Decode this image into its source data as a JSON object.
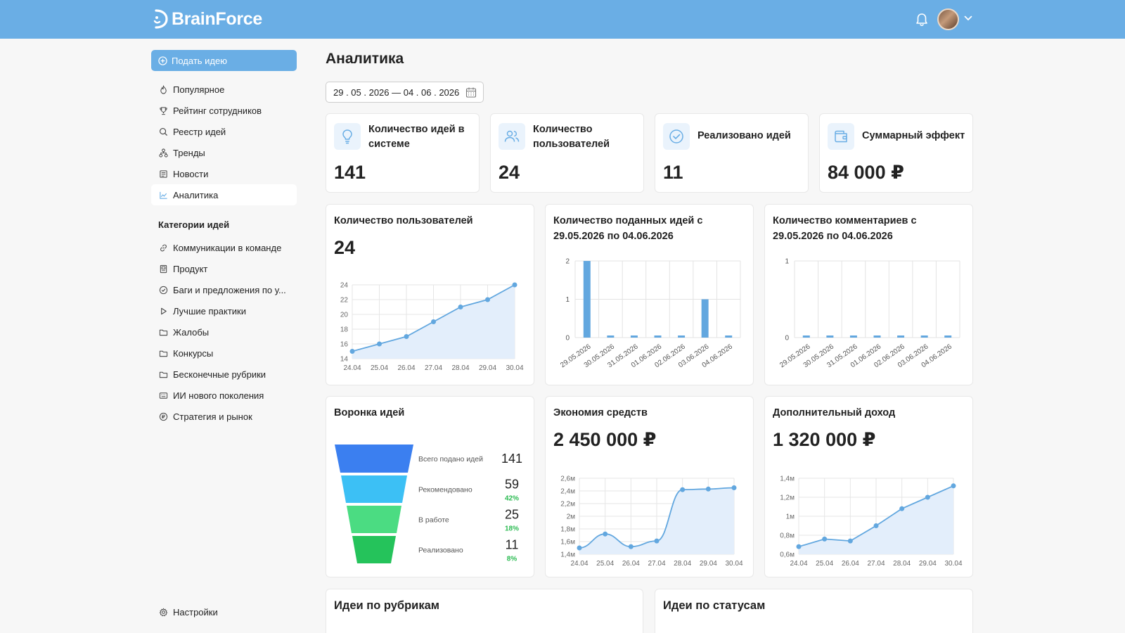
{
  "brand": {
    "name": "BrainForce"
  },
  "sidebar": {
    "submit_label": "Подать идею",
    "nav": [
      {
        "label": "Популярное",
        "icon": "flame-icon"
      },
      {
        "label": "Рейтинг сотрудников",
        "icon": "trophy-icon"
      },
      {
        "label": "Реестр идей",
        "icon": "search-icon"
      },
      {
        "label": "Тренды",
        "icon": "hierarchy-icon"
      },
      {
        "label": "Новости",
        "icon": "newspaper-icon"
      },
      {
        "label": "Аналитика",
        "icon": "chart-icon",
        "active": true
      }
    ],
    "categories_title": "Категории идей",
    "categories": [
      {
        "label": "Коммуникации в команде",
        "icon": "link-icon"
      },
      {
        "label": "Продукт",
        "icon": "product-icon"
      },
      {
        "label": "Баги и предложения по у...",
        "icon": "check-circle-icon"
      },
      {
        "label": "Лучшие практики",
        "icon": "play-icon"
      },
      {
        "label": "Жалобы",
        "icon": "folder-icon"
      },
      {
        "label": "Конкурсы",
        "icon": "folder-icon"
      },
      {
        "label": "Бесконечные рубрики",
        "icon": "folder-icon"
      },
      {
        "label": "ИИ нового поколения",
        "icon": "keyboard-icon"
      },
      {
        "label": "Стратегия и рынок",
        "icon": "coin-icon"
      }
    ],
    "settings_label": "Настройки"
  },
  "main": {
    "title": "Аналитика",
    "date_range": "29 . 05 . 2026 — 04 . 06 . 2026",
    "kpis": [
      {
        "title": "Количество идей в системе",
        "value": "141",
        "icon": "lightbulb-icon"
      },
      {
        "title": "Количество пользователей",
        "value": "24",
        "icon": "users-icon"
      },
      {
        "title": "Реализовано идей",
        "value": "11",
        "icon": "check-circle-icon"
      },
      {
        "title": "Суммарный эффект",
        "value": "84 000 ₽",
        "icon": "wallet-icon"
      }
    ],
    "users_card": {
      "title": "Количество пользователей",
      "value": "24"
    },
    "ideas_card": {
      "title": "Количество поданных идей с 29.05.2026 по 04.06.2026"
    },
    "comments_card": {
      "title": "Количество комментариев с 29.05.2026 по 04.06.2026"
    },
    "funnel_card": {
      "title": "Воронка идей"
    },
    "savings_card": {
      "title": "Экономия средств",
      "value": "2 450 000 ₽"
    },
    "income_card": {
      "title": "Дополнительный доход",
      "value": "1 320 000 ₽"
    },
    "bottom": {
      "by_category": "Идеи по рубрикам",
      "by_status": "Идеи по статусам"
    }
  },
  "colors": {
    "accent": "#6aaee5",
    "line": "#62a7df",
    "area": "#e3eefb",
    "green": "#2bbb52",
    "funnel": [
      "#3b7ff0",
      "#3cc0f5",
      "#4bdc82",
      "#25c35b"
    ]
  },
  "chart_data": [
    {
      "id": "users",
      "type": "area",
      "x": [
        "24.04",
        "25.04",
        "26.04",
        "27.04",
        "28.04",
        "29.04",
        "30.04"
      ],
      "series": [
        {
          "values": [
            15,
            16,
            17,
            19,
            21,
            22,
            24
          ]
        }
      ],
      "ylim": [
        14,
        24
      ],
      "yticks": [
        "14",
        "16",
        "18",
        "20",
        "22",
        "24"
      ],
      "grid": true
    },
    {
      "id": "ideas",
      "type": "bar",
      "categories": [
        "29.05.2026",
        "30.05.2026",
        "31.05.2026",
        "01.06.2026",
        "02.06.2026",
        "03.06.2026",
        "04.06.2026"
      ],
      "values": [
        2,
        0,
        0,
        0,
        0,
        1,
        0
      ],
      "ylim": [
        0,
        2
      ],
      "yticks": [
        "0",
        "1",
        "2"
      ],
      "grid": true
    },
    {
      "id": "comments",
      "type": "bar",
      "categories": [
        "29.05.2026",
        "30.05.2026",
        "31.05.2026",
        "01.06.2026",
        "02.06.2026",
        "03.06.2026",
        "04.06.2026"
      ],
      "values": [
        0,
        0,
        0,
        0,
        0,
        0,
        0
      ],
      "ylim": [
        0,
        1
      ],
      "yticks": [
        "0",
        "1"
      ],
      "grid": true
    },
    {
      "id": "funnel",
      "type": "funnel",
      "stages": [
        {
          "label": "Всего подано идей",
          "value": 141,
          "pct": ""
        },
        {
          "label": "Рекомендовано",
          "value": 59,
          "pct": "42%"
        },
        {
          "label": "В работе",
          "value": 25,
          "pct": "18%"
        },
        {
          "label": "Реализовано",
          "value": 11,
          "pct": "8%"
        }
      ]
    },
    {
      "id": "savings",
      "type": "area",
      "x": [
        "24.04",
        "25.04",
        "26.04",
        "27.04",
        "28.04",
        "29.04",
        "30.04"
      ],
      "series": [
        {
          "values": [
            1500000,
            1720000,
            1520000,
            1610000,
            2420000,
            2430000,
            2450000
          ]
        }
      ],
      "ylim": [
        1400000,
        2600000
      ],
      "yticks": [
        "1,4м",
        "1,6м",
        "1,8м",
        "2м",
        "2,2м",
        "2,4м",
        "2,6м"
      ],
      "grid": true
    },
    {
      "id": "income",
      "type": "area",
      "x": [
        "24.04",
        "25.04",
        "26.04",
        "27.04",
        "28.04",
        "29.04",
        "30.04"
      ],
      "series": [
        {
          "values": [
            680000,
            760000,
            740000,
            900000,
            1080000,
            1200000,
            1320000
          ]
        }
      ],
      "ylim": [
        600000,
        1400000
      ],
      "yticks": [
        "0,6м",
        "0,8м",
        "1м",
        "1,2м",
        "1,4м"
      ],
      "grid": true
    }
  ]
}
